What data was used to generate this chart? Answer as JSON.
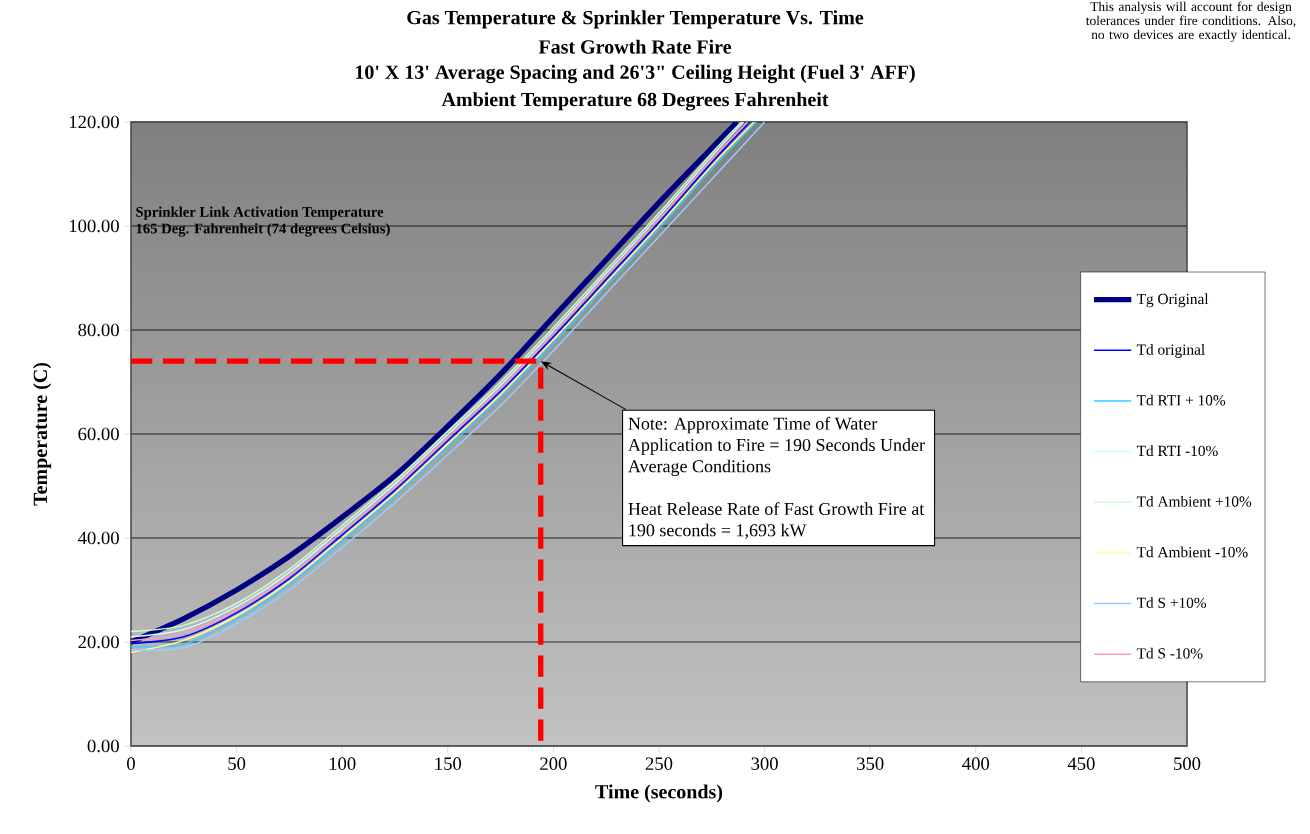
{
  "chart_data": {
    "type": "line",
    "title": "Gas Temperature & Sprinkler Temperature Vs. Time",
    "subtitle": "Fast Growth Rate Fire",
    "xlabel": "Time (seconds)",
    "ylabel": "Temperature (C)",
    "xlim": [
      0,
      500
    ],
    "xticks": [
      0,
      50,
      100,
      150,
      200,
      250,
      300,
      350,
      400,
      450,
      500
    ],
    "ylim": [
      0,
      120
    ],
    "yticks": [
      {
        "value": 0,
        "label": "0.00"
      },
      {
        "value": 20,
        "label": "20.00"
      },
      {
        "value": 40,
        "label": "40.00"
      },
      {
        "value": 60,
        "label": "60.00"
      },
      {
        "value": 80,
        "label": "80.00"
      },
      {
        "value": 100,
        "label": "100.00"
      },
      {
        "value": 120,
        "label": "120.00"
      }
    ],
    "grid": "y",
    "legend": "right",
    "marker": "none",
    "series": [
      {
        "name": "Tg Original",
        "color": "#000080",
        "x": [
          0,
          25,
          50,
          75,
          100,
          125,
          150,
          175,
          200,
          225,
          250,
          275,
          287
        ],
        "values": [
          20,
          24.5,
          30,
          36.5,
          44,
          52,
          61.5,
          71.5,
          82.5,
          93.5,
          104.5,
          115,
          120
        ]
      },
      {
        "name": "Td original",
        "color": "#0000ff",
        "x": [
          0,
          25,
          50,
          75,
          100,
          125,
          150,
          175,
          200,
          225,
          250,
          275,
          293
        ],
        "values": [
          19.7,
          21,
          25.6,
          32.2,
          40.6,
          49.2,
          58.7,
          68.2,
          78.7,
          89.7,
          100.7,
          112.2,
          120
        ]
      },
      {
        "name": "Td RTI + 10%",
        "color": "#33ccff",
        "x": [
          0,
          25,
          50,
          75,
          100,
          125,
          150,
          175,
          200,
          225,
          250,
          275,
          296
        ],
        "values": [
          19.1,
          19.6,
          24.4,
          31,
          39.4,
          48,
          57.5,
          67,
          77.5,
          88.5,
          99.5,
          111,
          120
        ]
      },
      {
        "name": "Td RTI -10%",
        "color": "#ccffff",
        "x": [
          0,
          25,
          50,
          75,
          100,
          125,
          150,
          175,
          200,
          225,
          250,
          275,
          290
        ],
        "values": [
          21,
          22.4,
          26.8,
          33.4,
          41.8,
          50.4,
          59.9,
          69.4,
          79.9,
          90.9,
          101.9,
          113.4,
          120
        ]
      },
      {
        "name": "Td Ambient +10%",
        "color": "#ccffcc",
        "x": [
          0,
          25,
          50,
          75,
          100,
          125,
          150,
          175,
          200,
          225,
          250,
          275,
          289
        ],
        "values": [
          22,
          23.2,
          27.4,
          34,
          42.4,
          51,
          60.5,
          70,
          80.5,
          91.5,
          102.5,
          114,
          120
        ]
      },
      {
        "name": "Td Ambient -10%",
        "color": "#ffff99",
        "x": [
          0,
          25,
          50,
          75,
          100,
          125,
          150,
          175,
          200,
          225,
          250,
          275,
          295
        ],
        "values": [
          18,
          20.3,
          25,
          31.6,
          40,
          48.6,
          58.1,
          67.6,
          78.1,
          89.1,
          100.1,
          111.6,
          120
        ]
      },
      {
        "name": "Td S +10%",
        "color": "#99ccff",
        "x": [
          0,
          25,
          50,
          75,
          100,
          125,
          150,
          175,
          200,
          225,
          250,
          275,
          300
        ],
        "values": [
          18.5,
          18.9,
          23.5,
          30,
          38.2,
          46.8,
          56,
          65.5,
          76,
          87,
          98,
          109,
          120
        ]
      },
      {
        "name": "Td S -10%",
        "color": "#ff99cc",
        "x": [
          0,
          25,
          50,
          75,
          100,
          125,
          150,
          175,
          200,
          225,
          250,
          275,
          292
        ],
        "values": [
          20.3,
          21.7,
          26.2,
          32.8,
          41.2,
          49.8,
          59.3,
          68.8,
          79.3,
          90.3,
          101.3,
          112.8,
          120
        ]
      },
      {
        "color": "#ff0000",
        "line_style": "dashed",
        "x": [
          0,
          194,
          194
        ],
        "values": [
          74,
          74,
          0
        ]
      }
    ],
    "annotations": [
      "10' X 13' Average Spacing and 26'3\" Ceiling Height (Fuel 3' AFF)",
      "Ambient Temperature 68 Degrees Fahrenheit",
      "Sprinkler Link Activation Temperature",
      "165 Deg. Fahrenheit (74 degrees Celsius)",
      {
        "text": "Note: Approximate Time of Water Application to Fire = 190 Seconds Under Average Conditions",
        "x": 194,
        "y": 74
      },
      "Heat Release Rate of Fast Growth Fire at 190 seconds = 1,693 kW",
      "This analysis will account for design tolerances under fire conditions. Also, no two devices are exactly identical."
    ]
  }
}
